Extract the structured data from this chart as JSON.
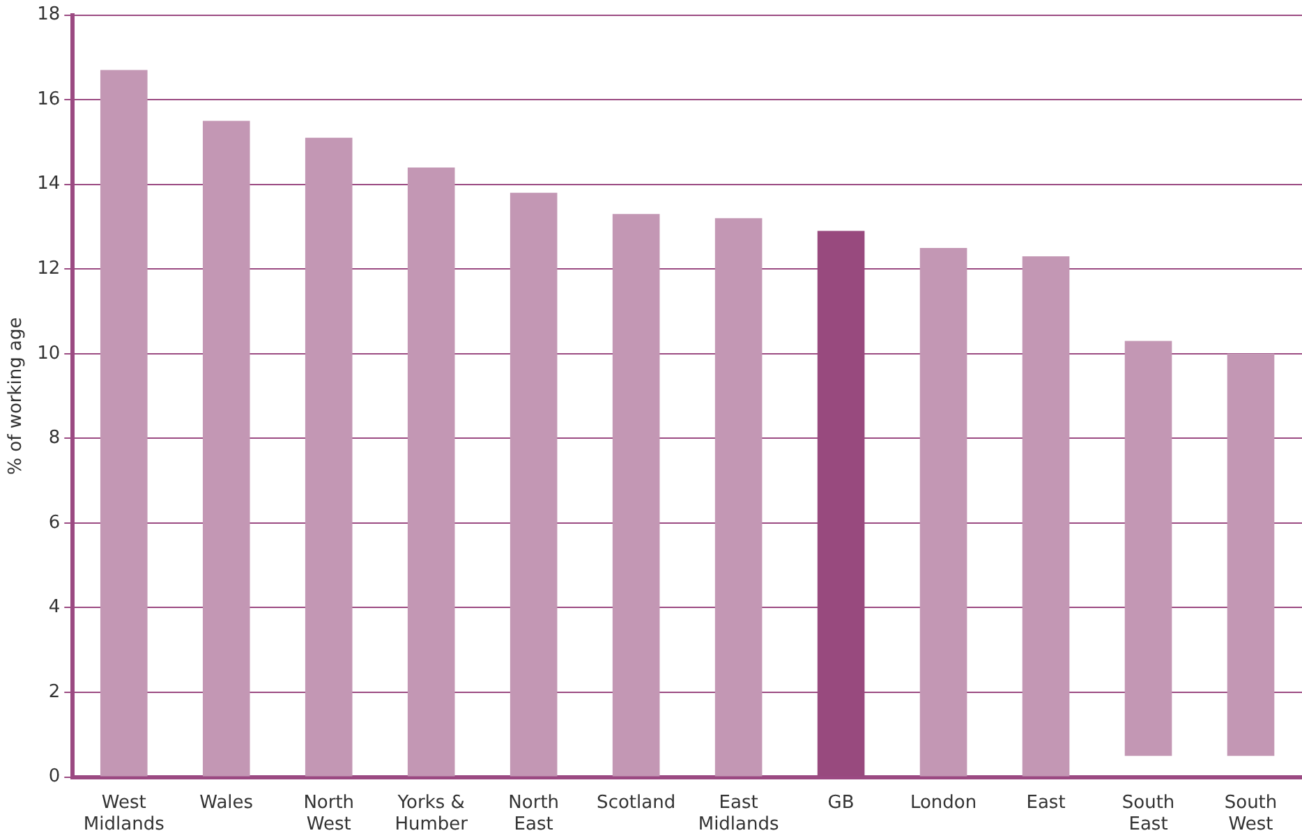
{
  "chart_data": {
    "type": "bar",
    "ylabel": "% of working age",
    "categories": [
      "West Midlands",
      "Wales",
      "North West",
      "Yorks & Humber",
      "North East",
      "Scotland",
      "East Midlands",
      "GB",
      "London",
      "East",
      "South East",
      "South West"
    ],
    "values": [
      16.7,
      15.5,
      15.1,
      14.4,
      13.8,
      13.3,
      13.2,
      12.9,
      12.5,
      12.3,
      9.8,
      9.5
    ],
    "base": [
      0,
      0,
      0,
      0,
      0,
      0,
      0,
      0,
      0,
      0,
      0.5,
      0.5
    ],
    "colors": [
      "#c397b4",
      "#c397b4",
      "#c397b4",
      "#c397b4",
      "#c397b4",
      "#c397b4",
      "#c397b4",
      "#984a7e",
      "#c397b4",
      "#c397b4",
      "#c397b4",
      "#c397b4"
    ],
    "ylim": [
      0,
      18
    ],
    "yticks": [
      0,
      2,
      4,
      6,
      8,
      10,
      12,
      14,
      16,
      18
    ],
    "grid": "y",
    "legend": false
  }
}
